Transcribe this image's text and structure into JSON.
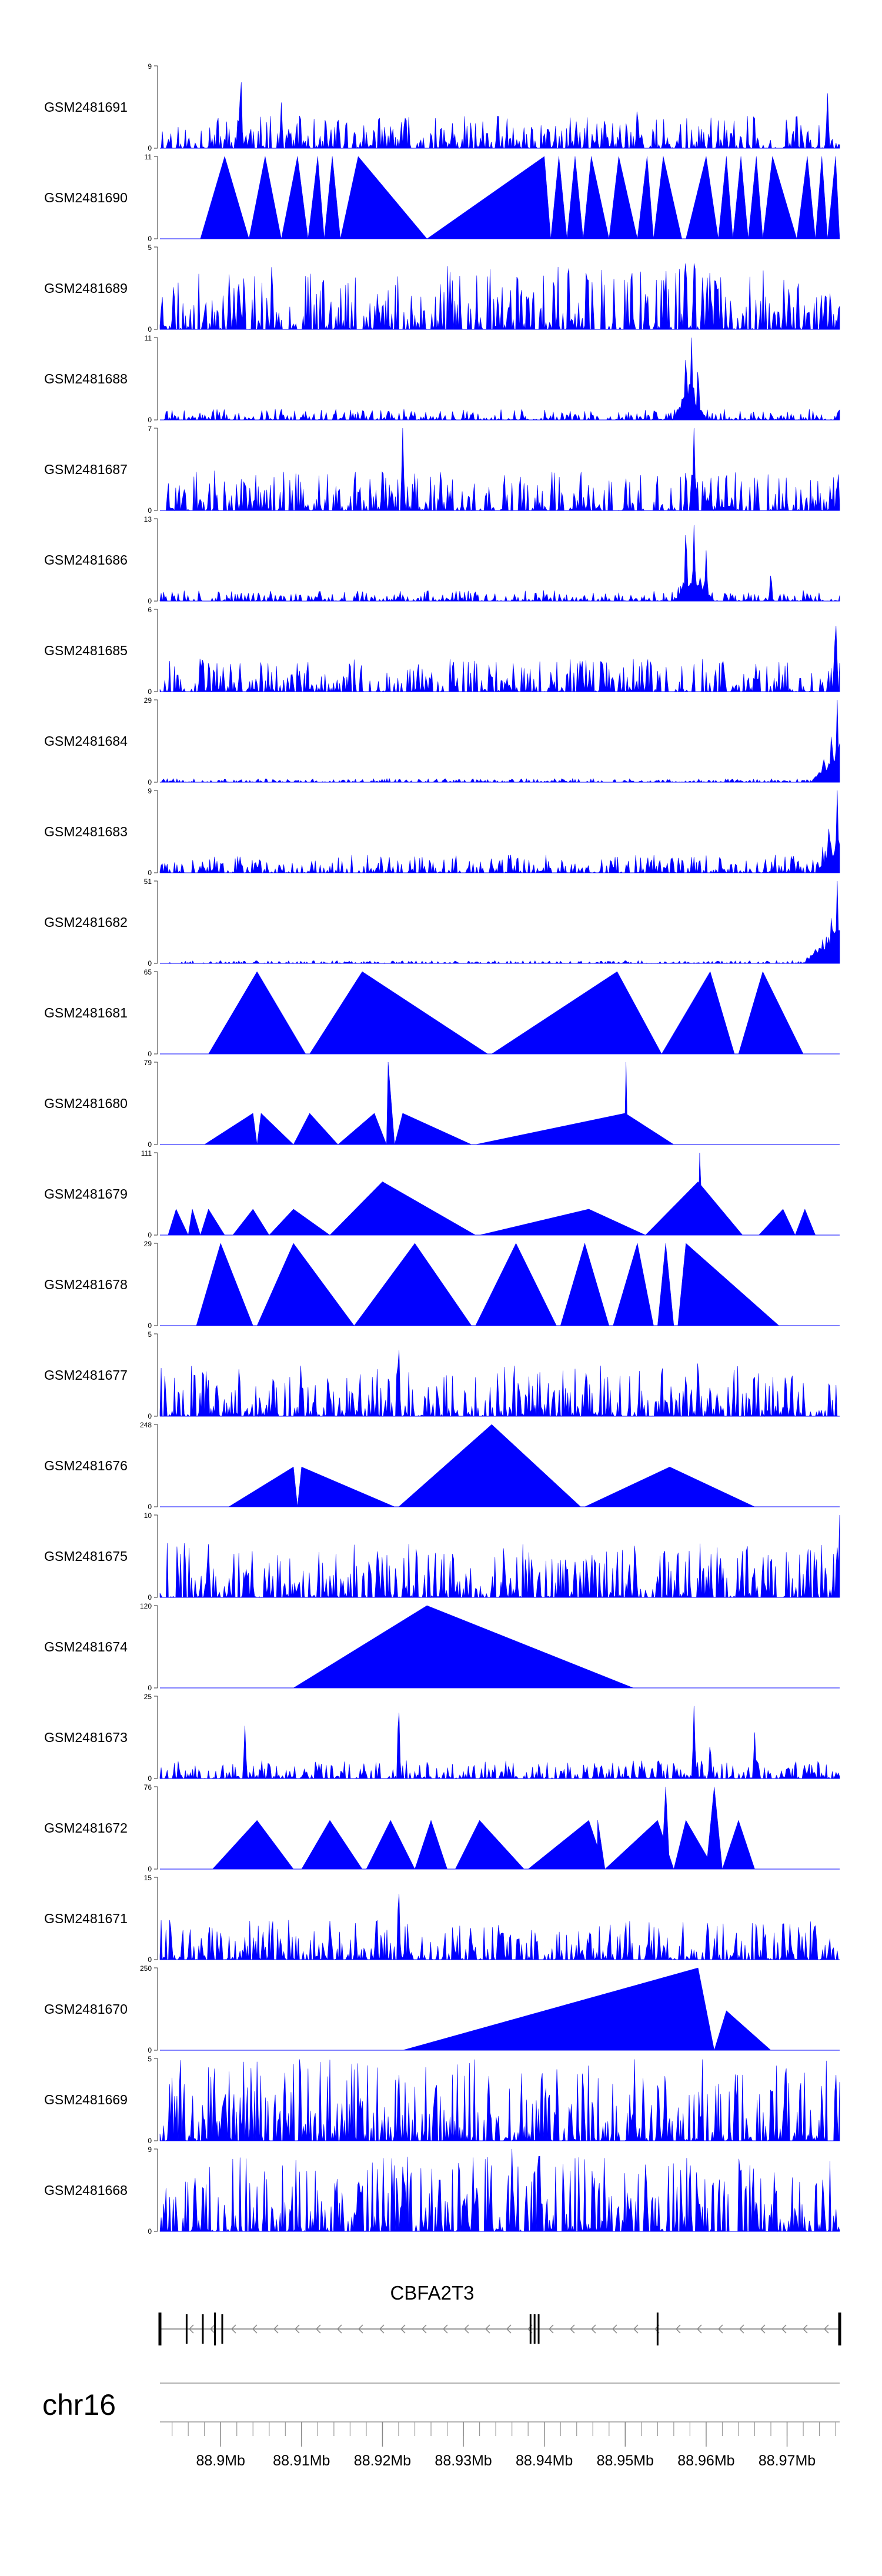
{
  "chart_data": {
    "type": "area",
    "fill_color": "#0000ff",
    "x_range_mb": [
      88.8925,
      88.9765
    ],
    "tracks": [
      {
        "name": "GSM2481691",
        "ymax_label": "9",
        "ymin_label": "0",
        "style": "dense",
        "seed": 11,
        "peaks": [
          [
            88.9025,
            9
          ],
          [
            88.9075,
            5
          ],
          [
            88.9515,
            5
          ],
          [
            88.975,
            6
          ]
        ],
        "base": 0.18
      },
      {
        "name": "GSM2481690",
        "ymax_label": "11",
        "ymin_label": "0",
        "style": "triangles",
        "triangles": [
          [
            88.8975,
            88.9005,
            88.9035,
            11
          ],
          [
            88.9035,
            88.9055,
            88.9075,
            11
          ],
          [
            88.9075,
            88.9095,
            88.9108,
            11
          ],
          [
            88.9108,
            88.912,
            88.9128,
            11
          ],
          [
            88.9128,
            88.9138,
            88.9148,
            11
          ],
          [
            88.9148,
            88.917,
            88.9255,
            11
          ],
          [
            88.9255,
            88.94,
            88.9408,
            11
          ],
          [
            88.9408,
            88.9418,
            88.9428,
            11
          ],
          [
            88.9428,
            88.9438,
            88.9448,
            11
          ],
          [
            88.9448,
            88.9458,
            88.948,
            11
          ],
          [
            88.948,
            88.9492,
            88.9515,
            11
          ],
          [
            88.9515,
            88.9527,
            88.9535,
            11
          ],
          [
            88.9535,
            88.9547,
            88.957,
            11
          ],
          [
            88.9575,
            88.96,
            88.9615,
            11
          ],
          [
            88.9615,
            88.9625,
            88.9633,
            11
          ],
          [
            88.9633,
            88.9643,
            88.9652,
            11
          ],
          [
            88.9652,
            88.9662,
            88.967,
            11
          ],
          [
            88.967,
            88.9682,
            88.9712,
            11
          ],
          [
            88.9712,
            88.9725,
            88.9735,
            11
          ],
          [
            88.9735,
            88.9743,
            88.975,
            11
          ],
          [
            88.975,
            88.976,
            88.9765,
            11
          ]
        ]
      },
      {
        "name": "GSM2481689",
        "ymax_label": "5",
        "ymin_label": "0",
        "style": "dense",
        "seed": 23,
        "peaks": [
          [
            88.9575,
            5
          ],
          [
            88.9585,
            4
          ],
          [
            88.9605,
            3
          ]
        ],
        "base": 0.35
      },
      {
        "name": "GSM2481688",
        "ymax_label": "11",
        "ymin_label": "0",
        "style": "dense",
        "seed": 31,
        "peaks": [
          [
            88.9575,
            10
          ],
          [
            88.9582,
            11
          ],
          [
            88.959,
            8
          ]
        ],
        "base": 0.06,
        "hump": [
          88.956,
          88.96,
          0.45
        ]
      },
      {
        "name": "GSM2481687",
        "ymax_label": "7",
        "ymin_label": "0",
        "style": "dense",
        "seed": 43,
        "peaks": [
          [
            88.9225,
            7
          ],
          [
            88.9585,
            7
          ],
          [
            88.9575,
            4
          ]
        ],
        "base": 0.22
      },
      {
        "name": "GSM2481686",
        "ymax_label": "13",
        "ymin_label": "0",
        "style": "dense",
        "seed": 57,
        "peaks": [
          [
            88.9575,
            13
          ],
          [
            88.9585,
            12
          ],
          [
            88.96,
            8
          ],
          [
            88.968,
            5
          ]
        ],
        "base": 0.06,
        "hump": [
          88.956,
          88.961,
          0.35
        ]
      },
      {
        "name": "GSM2481685",
        "ymax_label": "6",
        "ymin_label": "0",
        "style": "dense",
        "seed": 67,
        "peaks": [
          [
            88.976,
            6
          ],
          [
            88.8975,
            3
          ]
        ],
        "base": 0.18
      },
      {
        "name": "GSM2481684",
        "ymax_label": "29",
        "ymin_label": "0",
        "style": "dense",
        "seed": 71,
        "peaks": [
          [
            88.9762,
            29
          ],
          [
            88.9755,
            20
          ],
          [
            88.9745,
            10
          ]
        ],
        "base": 0.02,
        "tailrise": [
          88.973,
          0.5
        ]
      },
      {
        "name": "GSM2481683",
        "ymax_label": "9",
        "ymin_label": "0",
        "style": "dense",
        "seed": 83,
        "peaks": [
          [
            88.9762,
            9
          ],
          [
            88.9752,
            6
          ]
        ],
        "base": 0.1,
        "tailrise": [
          88.9735,
          0.4
        ]
      },
      {
        "name": "GSM2481682",
        "ymax_label": "51",
        "ymin_label": "0",
        "style": "dense",
        "seed": 97,
        "peaks": [
          [
            88.9762,
            51
          ],
          [
            88.9755,
            35
          ]
        ],
        "base": 0.015,
        "tailrise": [
          88.972,
          0.5
        ]
      },
      {
        "name": "GSM2481681",
        "ymax_label": "65",
        "ymin_label": "0",
        "style": "triangles",
        "triangles": [
          [
            88.8985,
            88.9045,
            88.9105,
            65
          ],
          [
            88.911,
            88.9175,
            88.933,
            65
          ],
          [
            88.9335,
            88.949,
            88.9545,
            65
          ],
          [
            88.9545,
            88.9605,
            88.9635,
            65
          ],
          [
            88.964,
            88.967,
            88.972,
            65
          ]
        ]
      },
      {
        "name": "GSM2481680",
        "ymax_label": "79",
        "ymin_label": "0",
        "style": "triangles",
        "triangles": [
          [
            88.898,
            88.904,
            88.9045,
            30
          ],
          [
            88.9045,
            88.905,
            88.909,
            30
          ],
          [
            88.909,
            88.911,
            88.9145,
            30
          ],
          [
            88.9145,
            88.919,
            88.9205,
            30
          ],
          [
            88.9205,
            88.9207,
            88.9215,
            79
          ],
          [
            88.9215,
            88.9225,
            88.931,
            30
          ],
          [
            88.9315,
            88.95,
            88.956,
            30
          ],
          [
            88.9499,
            88.9501,
            88.9503,
            79
          ]
        ]
      },
      {
        "name": "GSM2481679",
        "ymax_label": "111",
        "ymin_label": "0",
        "style": "triangles",
        "triangles": [
          [
            88.8935,
            88.8945,
            88.896,
            35
          ],
          [
            88.896,
            88.8965,
            88.8975,
            35
          ],
          [
            88.8975,
            88.8985,
            88.9005,
            35
          ],
          [
            88.9015,
            88.904,
            88.906,
            35
          ],
          [
            88.906,
            88.909,
            88.9135,
            35
          ],
          [
            88.9135,
            88.92,
            88.9315,
            72
          ],
          [
            88.932,
            88.9455,
            88.9525,
            35
          ],
          [
            88.9525,
            88.959,
            88.9645,
            72
          ],
          [
            88.959,
            88.9592,
            88.9596,
            111
          ],
          [
            88.9665,
            88.9695,
            88.971,
            35
          ],
          [
            88.971,
            88.9722,
            88.9735,
            35
          ]
        ]
      },
      {
        "name": "GSM2481678",
        "ymax_label": "29",
        "ymin_label": "0",
        "style": "triangles",
        "triangles": [
          [
            88.897,
            88.9,
            88.904,
            29
          ],
          [
            88.9045,
            88.909,
            88.9165,
            29
          ],
          [
            88.9165,
            88.924,
            88.931,
            29
          ],
          [
            88.9315,
            88.9365,
            88.9415,
            29
          ],
          [
            88.942,
            88.945,
            88.948,
            29
          ],
          [
            88.9485,
            88.9515,
            88.9535,
            29
          ],
          [
            88.954,
            88.955,
            88.956,
            29
          ],
          [
            88.9565,
            88.9575,
            88.969,
            29
          ]
        ]
      },
      {
        "name": "GSM2481677",
        "ymax_label": "5",
        "ymin_label": "0",
        "style": "dense",
        "seed": 101,
        "peaks": [
          [
            88.922,
            5
          ],
          [
            88.959,
            4
          ],
          [
            88.9575,
            3
          ]
        ],
        "base": 0.28
      },
      {
        "name": "GSM2481676",
        "ymax_label": "248",
        "ymin_label": "0",
        "style": "triangles",
        "triangles": [
          [
            88.901,
            88.909,
            88.9095,
            120
          ],
          [
            88.9095,
            88.91,
            88.9215,
            120
          ],
          [
            88.922,
            88.9335,
            88.9445,
            248
          ],
          [
            88.945,
            88.9555,
            88.966,
            120
          ]
        ]
      },
      {
        "name": "GSM2481675",
        "ymax_label": "10",
        "ymin_label": "0",
        "style": "dense",
        "seed": 113,
        "peaks": [
          [
            88.9765,
            10
          ],
          [
            88.9505,
            5
          ]
        ],
        "base": 0.3
      },
      {
        "name": "GSM2481674",
        "ymax_label": "120",
        "ymin_label": "0",
        "style": "triangles",
        "triangles": [
          [
            88.909,
            88.9255,
            88.951,
            120
          ]
        ]
      },
      {
        "name": "GSM2481673",
        "ymax_label": "25",
        "ymin_label": "0",
        "style": "dense",
        "seed": 127,
        "peaks": [
          [
            88.922,
            25
          ],
          [
            88.903,
            16
          ],
          [
            88.9585,
            22
          ],
          [
            88.9605,
            12
          ],
          [
            88.966,
            14
          ]
        ],
        "base": 0.1
      },
      {
        "name": "GSM2481672",
        "ymax_label": "76",
        "ymin_label": "0",
        "style": "triangles",
        "triangles": [
          [
            88.899,
            88.9045,
            88.909,
            45
          ],
          [
            88.91,
            88.9135,
            88.9175,
            45
          ],
          [
            88.918,
            88.921,
            88.924,
            45
          ],
          [
            88.924,
            88.926,
            88.928,
            45
          ],
          [
            88.929,
            88.932,
            88.9375,
            45
          ],
          [
            88.938,
            88.9455,
            88.9475,
            45
          ],
          [
            88.9465,
            88.9466,
            88.9475,
            45
          ],
          [
            88.9475,
            88.954,
            88.956,
            45
          ],
          [
            88.9545,
            88.955,
            88.9555,
            76
          ],
          [
            88.956,
            88.9575,
            88.961,
            45
          ],
          [
            88.96,
            88.961,
            88.962,
            76
          ],
          [
            88.962,
            88.964,
            88.966,
            45
          ]
        ]
      },
      {
        "name": "GSM2481671",
        "ymax_label": "15",
        "ymin_label": "0",
        "style": "dense",
        "seed": 139,
        "peaks": [
          [
            88.922,
            15
          ],
          [
            88.95,
            6
          ]
        ],
        "base": 0.22
      },
      {
        "name": "GSM2481670",
        "ymax_label": "250",
        "ymin_label": "0",
        "style": "triangles",
        "triangles": [
          [
            88.9225,
            88.959,
            88.961,
            250
          ],
          [
            88.961,
            88.9625,
            88.968,
            120
          ]
        ]
      },
      {
        "name": "GSM2481669",
        "ymax_label": "5",
        "ymin_label": "0",
        "style": "dense",
        "seed": 151,
        "peaks": [
          [
            88.922,
            5
          ],
          [
            88.976,
            5
          ]
        ],
        "base": 0.45
      },
      {
        "name": "GSM2481668",
        "ymax_label": "9",
        "ymin_label": "0",
        "style": "dense",
        "seed": 163,
        "peaks": [
          [
            88.936,
            9
          ],
          [
            88.958,
            9
          ]
        ],
        "base": 0.42
      }
    ],
    "gene_track": {
      "gene_name": "CBFA2T3",
      "strand": "minus",
      "exons_mb": [
        88.8925,
        88.8958,
        88.8978,
        88.8993,
        88.9002,
        88.9383,
        88.9388,
        88.9393,
        88.954,
        88.9765
      ]
    },
    "axis": {
      "chromosome": "chr16",
      "tick_labels": [
        "88.9Mb",
        "88.91Mb",
        "88.92Mb",
        "88.93Mb",
        "88.94Mb",
        "88.95Mb",
        "88.96Mb",
        "88.97Mb"
      ],
      "tick_values_mb": [
        88.9,
        88.91,
        88.92,
        88.93,
        88.94,
        88.95,
        88.96,
        88.97
      ],
      "minor_step_mb": 0.002
    }
  }
}
